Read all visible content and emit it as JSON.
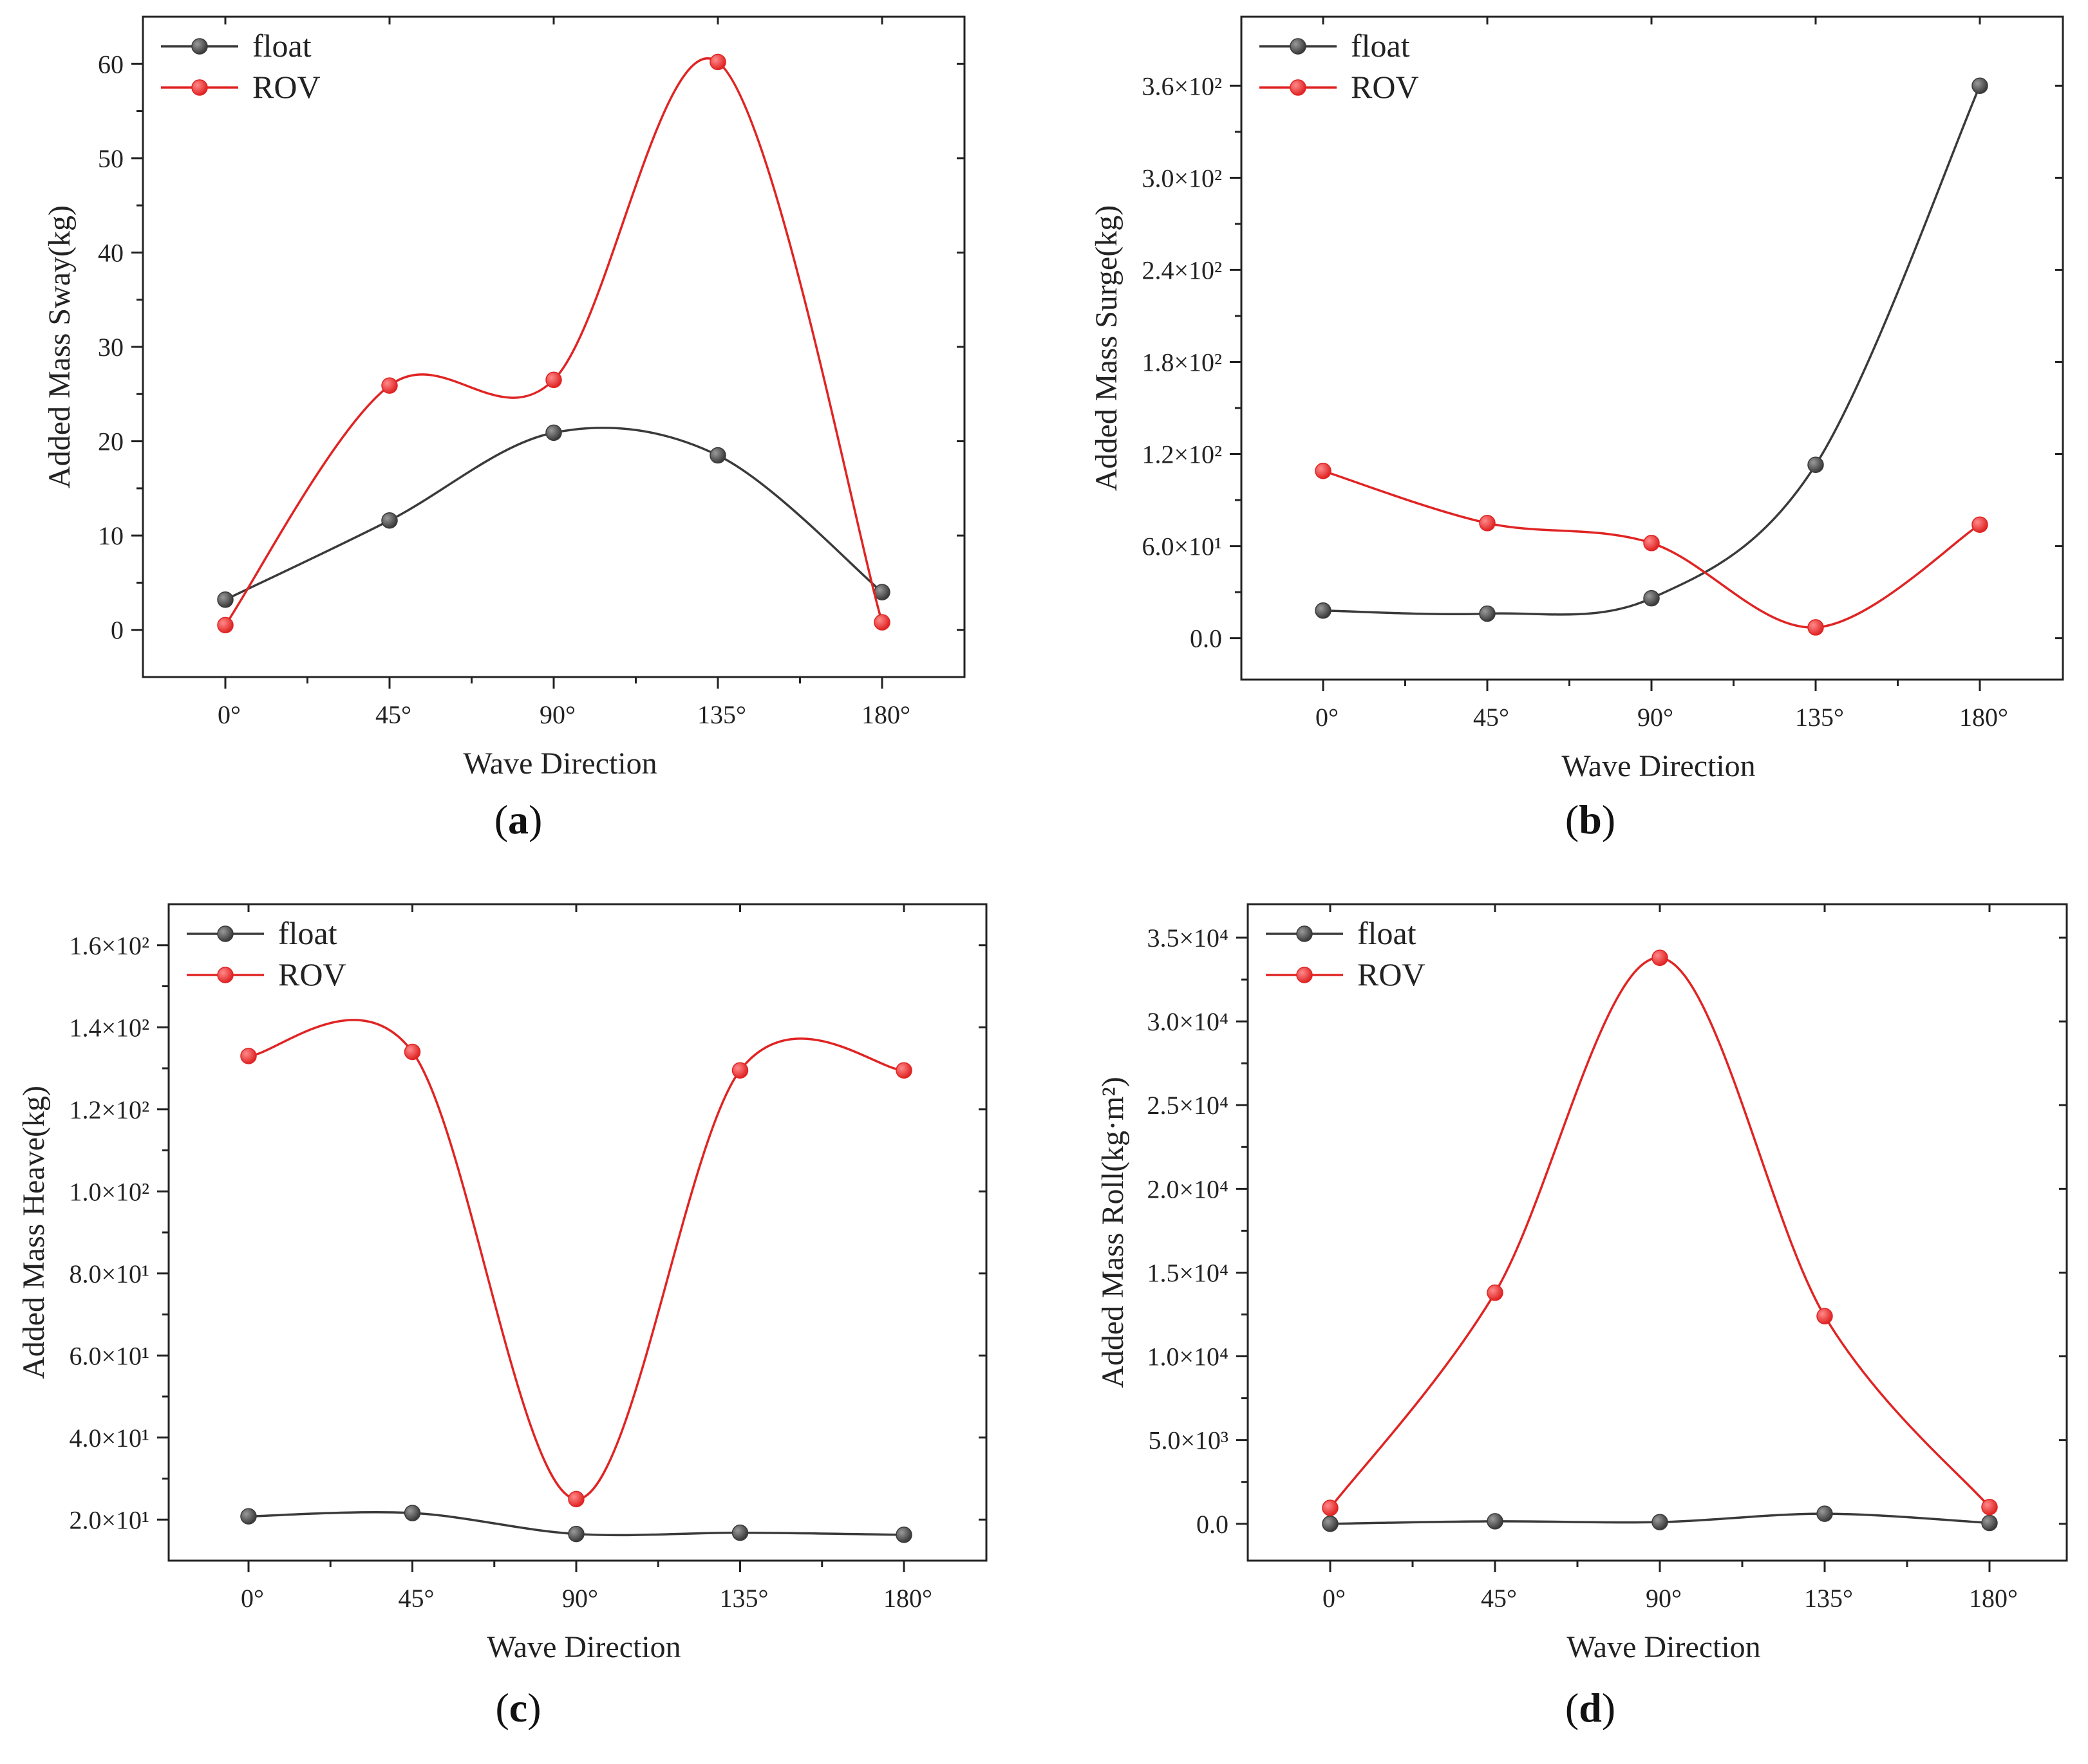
{
  "figure": {
    "panels": [
      {
        "id": "a",
        "label": "a"
      },
      {
        "id": "b",
        "label": "b"
      },
      {
        "id": "c",
        "label": "c"
      },
      {
        "id": "d",
        "label": "d"
      }
    ]
  },
  "colors": {
    "float": "#3a3a3a",
    "rov": "#e02424",
    "axis": "#222222"
  },
  "chart_data": [
    {
      "id": "a",
      "type": "line",
      "title": "",
      "xlabel": "Wave Direction",
      "ylabel": "Added Mass Sway(kg)",
      "categories": [
        "0°",
        "45°",
        "90°",
        "135°",
        "180°"
      ],
      "ylim": [
        -5,
        65
      ],
      "yticks": [
        0,
        10,
        20,
        30,
        40,
        50,
        60
      ],
      "ytick_labels": [
        "0",
        "10",
        "20",
        "30",
        "40",
        "50",
        "60"
      ],
      "legend": "top-left",
      "series": [
        {
          "name": "float",
          "values": [
            3.2,
            11.6,
            20.9,
            18.5,
            4.0
          ]
        },
        {
          "name": "ROV",
          "values": [
            0.5,
            25.9,
            26.5,
            60.2,
            0.8
          ]
        }
      ]
    },
    {
      "id": "b",
      "type": "line",
      "title": "",
      "xlabel": "Wave Direction",
      "ylabel": "Added Mass Surge(kg)",
      "categories": [
        "0°",
        "45°",
        "90°",
        "135°",
        "180°"
      ],
      "ylim": [
        -27,
        405
      ],
      "yticks": [
        0,
        60,
        120,
        180,
        240,
        300,
        360
      ],
      "ytick_labels": [
        "0.0",
        "6.0×10¹",
        "1.2×10²",
        "1.8×10²",
        "2.4×10²",
        "3.0×10²",
        "3.6×10²"
      ],
      "legend": "top-left",
      "series": [
        {
          "name": "float",
          "values": [
            18,
            16,
            26,
            113,
            360
          ]
        },
        {
          "name": "ROV",
          "values": [
            109,
            75,
            62,
            7,
            74
          ]
        }
      ]
    },
    {
      "id": "c",
      "type": "line",
      "title": "",
      "xlabel": "Wave Direction",
      "ylabel": "Added Mass Heave(kg)",
      "categories": [
        "0°",
        "45°",
        "90°",
        "135°",
        "180°"
      ],
      "ylim": [
        10,
        170
      ],
      "yticks": [
        20,
        40,
        60,
        80,
        100,
        120,
        140,
        160
      ],
      "ytick_labels": [
        "2.0×10¹",
        "4.0×10¹",
        "6.0×10¹",
        "8.0×10¹",
        "1.0×10²",
        "1.2×10²",
        "1.4×10²",
        "1.6×10²"
      ],
      "legend": "top-left",
      "series": [
        {
          "name": "float",
          "values": [
            20.8,
            21.6,
            16.5,
            16.8,
            16.3
          ]
        },
        {
          "name": "ROV",
          "values": [
            133,
            134,
            25,
            129.5,
            129.5
          ]
        }
      ]
    },
    {
      "id": "d",
      "type": "line",
      "title": "",
      "xlabel": "Wave Direction",
      "ylabel": "Added Mass Roll(kg·m²)",
      "categories": [
        "0°",
        "45°",
        "90°",
        "135°",
        "180°"
      ],
      "ylim": [
        -2200,
        37000
      ],
      "yticks": [
        0,
        5000,
        10000,
        15000,
        20000,
        25000,
        30000,
        35000
      ],
      "ytick_labels": [
        "0.0",
        "5.0×10³",
        "1.0×10⁴",
        "1.5×10⁴",
        "2.0×10⁴",
        "2.5×10⁴",
        "3.0×10⁴",
        "3.5×10⁴"
      ],
      "legend": "top-left",
      "series": [
        {
          "name": "float",
          "values": [
            0,
            150,
            100,
            600,
            50
          ]
        },
        {
          "name": "ROV",
          "values": [
            950,
            13800,
            33800,
            12400,
            1000
          ]
        }
      ]
    }
  ]
}
